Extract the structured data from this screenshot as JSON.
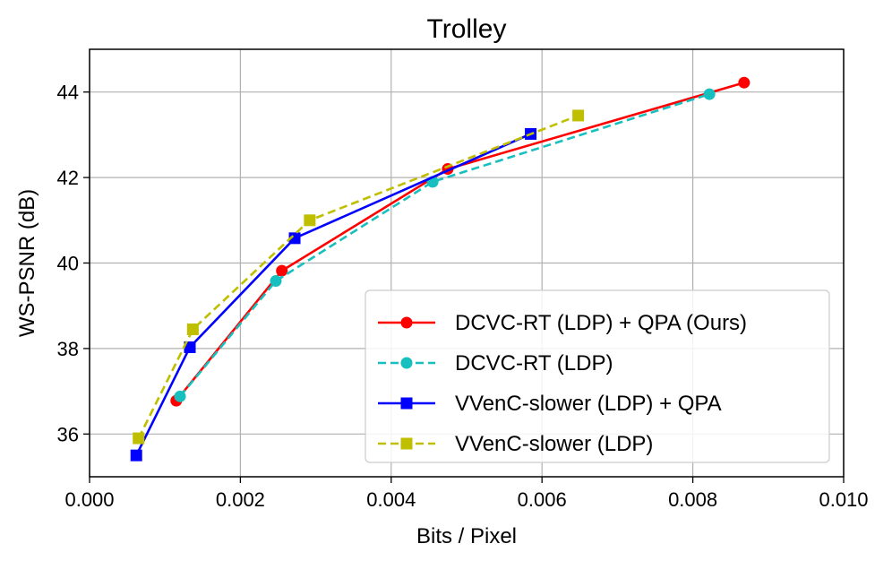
{
  "chart_data": {
    "type": "line",
    "title": "Trolley",
    "xlabel": "Bits / Pixel",
    "ylabel": "WS-PSNR (dB)",
    "xlim": [
      0.0,
      0.01
    ],
    "ylim": [
      35.0,
      45.0
    ],
    "xticks": [
      "0.000",
      "0.002",
      "0.004",
      "0.006",
      "0.008",
      "0.010"
    ],
    "yticks": [
      "36",
      "38",
      "40",
      "42",
      "44"
    ],
    "grid": true,
    "legend_position": "bottom-right",
    "series": [
      {
        "name": "DCVC-RT (LDP) + QPA (Ours)",
        "color": "#ff0000",
        "linestyle": "solid",
        "marker": "circle",
        "x": [
          0.00115,
          0.00255,
          0.00475,
          0.00868
        ],
        "y": [
          36.78,
          39.82,
          42.2,
          44.22
        ]
      },
      {
        "name": "DCVC-RT (LDP)",
        "color": "#17bfbf",
        "linestyle": "dashed",
        "marker": "circle",
        "x": [
          0.0012,
          0.00247,
          0.00455,
          0.00822
        ],
        "y": [
          36.88,
          39.58,
          41.9,
          43.95
        ]
      },
      {
        "name": "VVenC-slower (LDP) + QPA",
        "color": "#0000ff",
        "linestyle": "solid",
        "marker": "square",
        "x": [
          0.00062,
          0.00133,
          0.00272,
          0.00585
        ],
        "y": [
          35.5,
          38.03,
          40.58,
          43.02
        ]
      },
      {
        "name": "VVenC-slower (LDP)",
        "color": "#bfbf00",
        "linestyle": "dashed",
        "marker": "square",
        "x": [
          0.00065,
          0.00137,
          0.00292,
          0.00648
        ],
        "y": [
          35.9,
          38.45,
          41.0,
          43.45
        ]
      }
    ]
  }
}
